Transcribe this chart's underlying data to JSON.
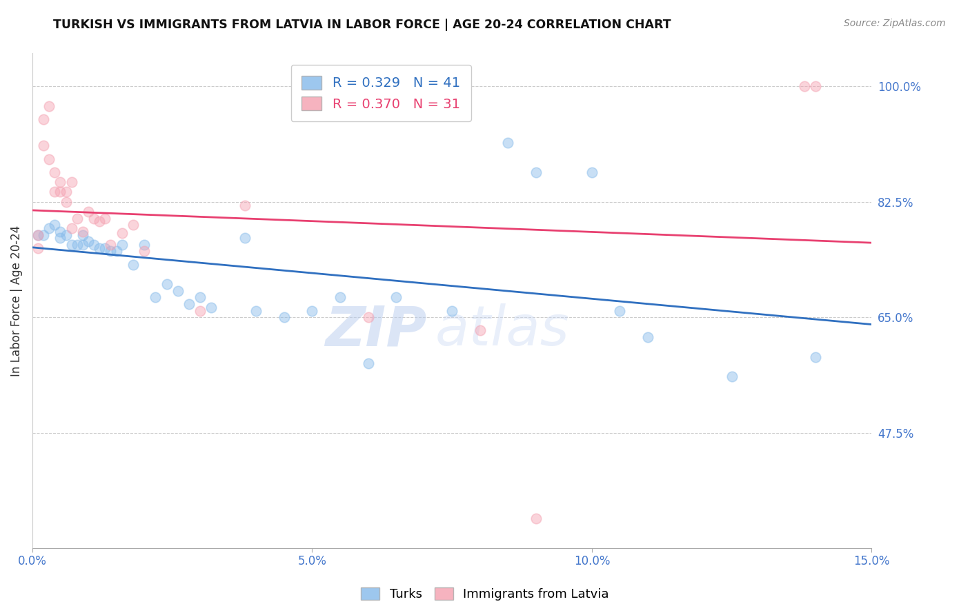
{
  "title": "TURKISH VS IMMIGRANTS FROM LATVIA IN LABOR FORCE | AGE 20-24 CORRELATION CHART",
  "source": "Source: ZipAtlas.com",
  "ylabel": "In Labor Force | Age 20-24",
  "xlim": [
    0.0,
    0.15
  ],
  "ylim": [
    0.3,
    1.05
  ],
  "yticks": [
    0.475,
    0.65,
    0.825,
    1.0
  ],
  "ytick_labels": [
    "47.5%",
    "65.0%",
    "82.5%",
    "100.0%"
  ],
  "xticks": [
    0.0,
    0.05,
    0.1,
    0.15
  ],
  "xtick_labels": [
    "0.0%",
    "5.0%",
    "10.0%",
    "15.0%"
  ],
  "turks_x": [
    0.001,
    0.002,
    0.003,
    0.004,
    0.005,
    0.005,
    0.006,
    0.007,
    0.008,
    0.009,
    0.009,
    0.01,
    0.011,
    0.012,
    0.013,
    0.014,
    0.015,
    0.016,
    0.018,
    0.02,
    0.022,
    0.024,
    0.026,
    0.028,
    0.03,
    0.032,
    0.038,
    0.04,
    0.045,
    0.05,
    0.055,
    0.06,
    0.065,
    0.075,
    0.085,
    0.09,
    0.1,
    0.105,
    0.11,
    0.125,
    0.14
  ],
  "turks_y": [
    0.775,
    0.775,
    0.785,
    0.79,
    0.78,
    0.77,
    0.775,
    0.76,
    0.76,
    0.775,
    0.76,
    0.765,
    0.76,
    0.755,
    0.755,
    0.75,
    0.75,
    0.76,
    0.73,
    0.76,
    0.68,
    0.7,
    0.69,
    0.67,
    0.68,
    0.665,
    0.77,
    0.66,
    0.65,
    0.66,
    0.68,
    0.58,
    0.68,
    0.66,
    0.915,
    0.87,
    0.87,
    0.66,
    0.62,
    0.56,
    0.59
  ],
  "latvia_x": [
    0.001,
    0.001,
    0.002,
    0.002,
    0.003,
    0.003,
    0.004,
    0.004,
    0.005,
    0.005,
    0.006,
    0.006,
    0.007,
    0.007,
    0.008,
    0.009,
    0.01,
    0.011,
    0.012,
    0.013,
    0.014,
    0.016,
    0.018,
    0.02,
    0.03,
    0.038,
    0.06,
    0.08,
    0.09,
    0.138,
    0.14
  ],
  "latvia_y": [
    0.775,
    0.755,
    0.95,
    0.91,
    0.97,
    0.89,
    0.87,
    0.84,
    0.855,
    0.84,
    0.84,
    0.825,
    0.855,
    0.785,
    0.8,
    0.78,
    0.81,
    0.8,
    0.795,
    0.8,
    0.76,
    0.778,
    0.79,
    0.75,
    0.66,
    0.82,
    0.65,
    0.63,
    0.345,
    1.0,
    1.0
  ],
  "turks_R": 0.329,
  "turks_N": 41,
  "latvia_R": 0.37,
  "latvia_N": 31,
  "turks_color": "#85BAEA",
  "latvia_color": "#F4A0B0",
  "turks_line_color": "#3070C0",
  "latvia_line_color": "#E84070",
  "marker_size": 110,
  "marker_alpha": 0.45,
  "watermark_text": "ZIP",
  "watermark_text2": "atlas",
  "background_color": "#ffffff",
  "grid_color": "#cccccc",
  "tick_label_color": "#4477CC",
  "ylabel_color": "#333333",
  "title_color": "#111111",
  "source_color": "#888888"
}
